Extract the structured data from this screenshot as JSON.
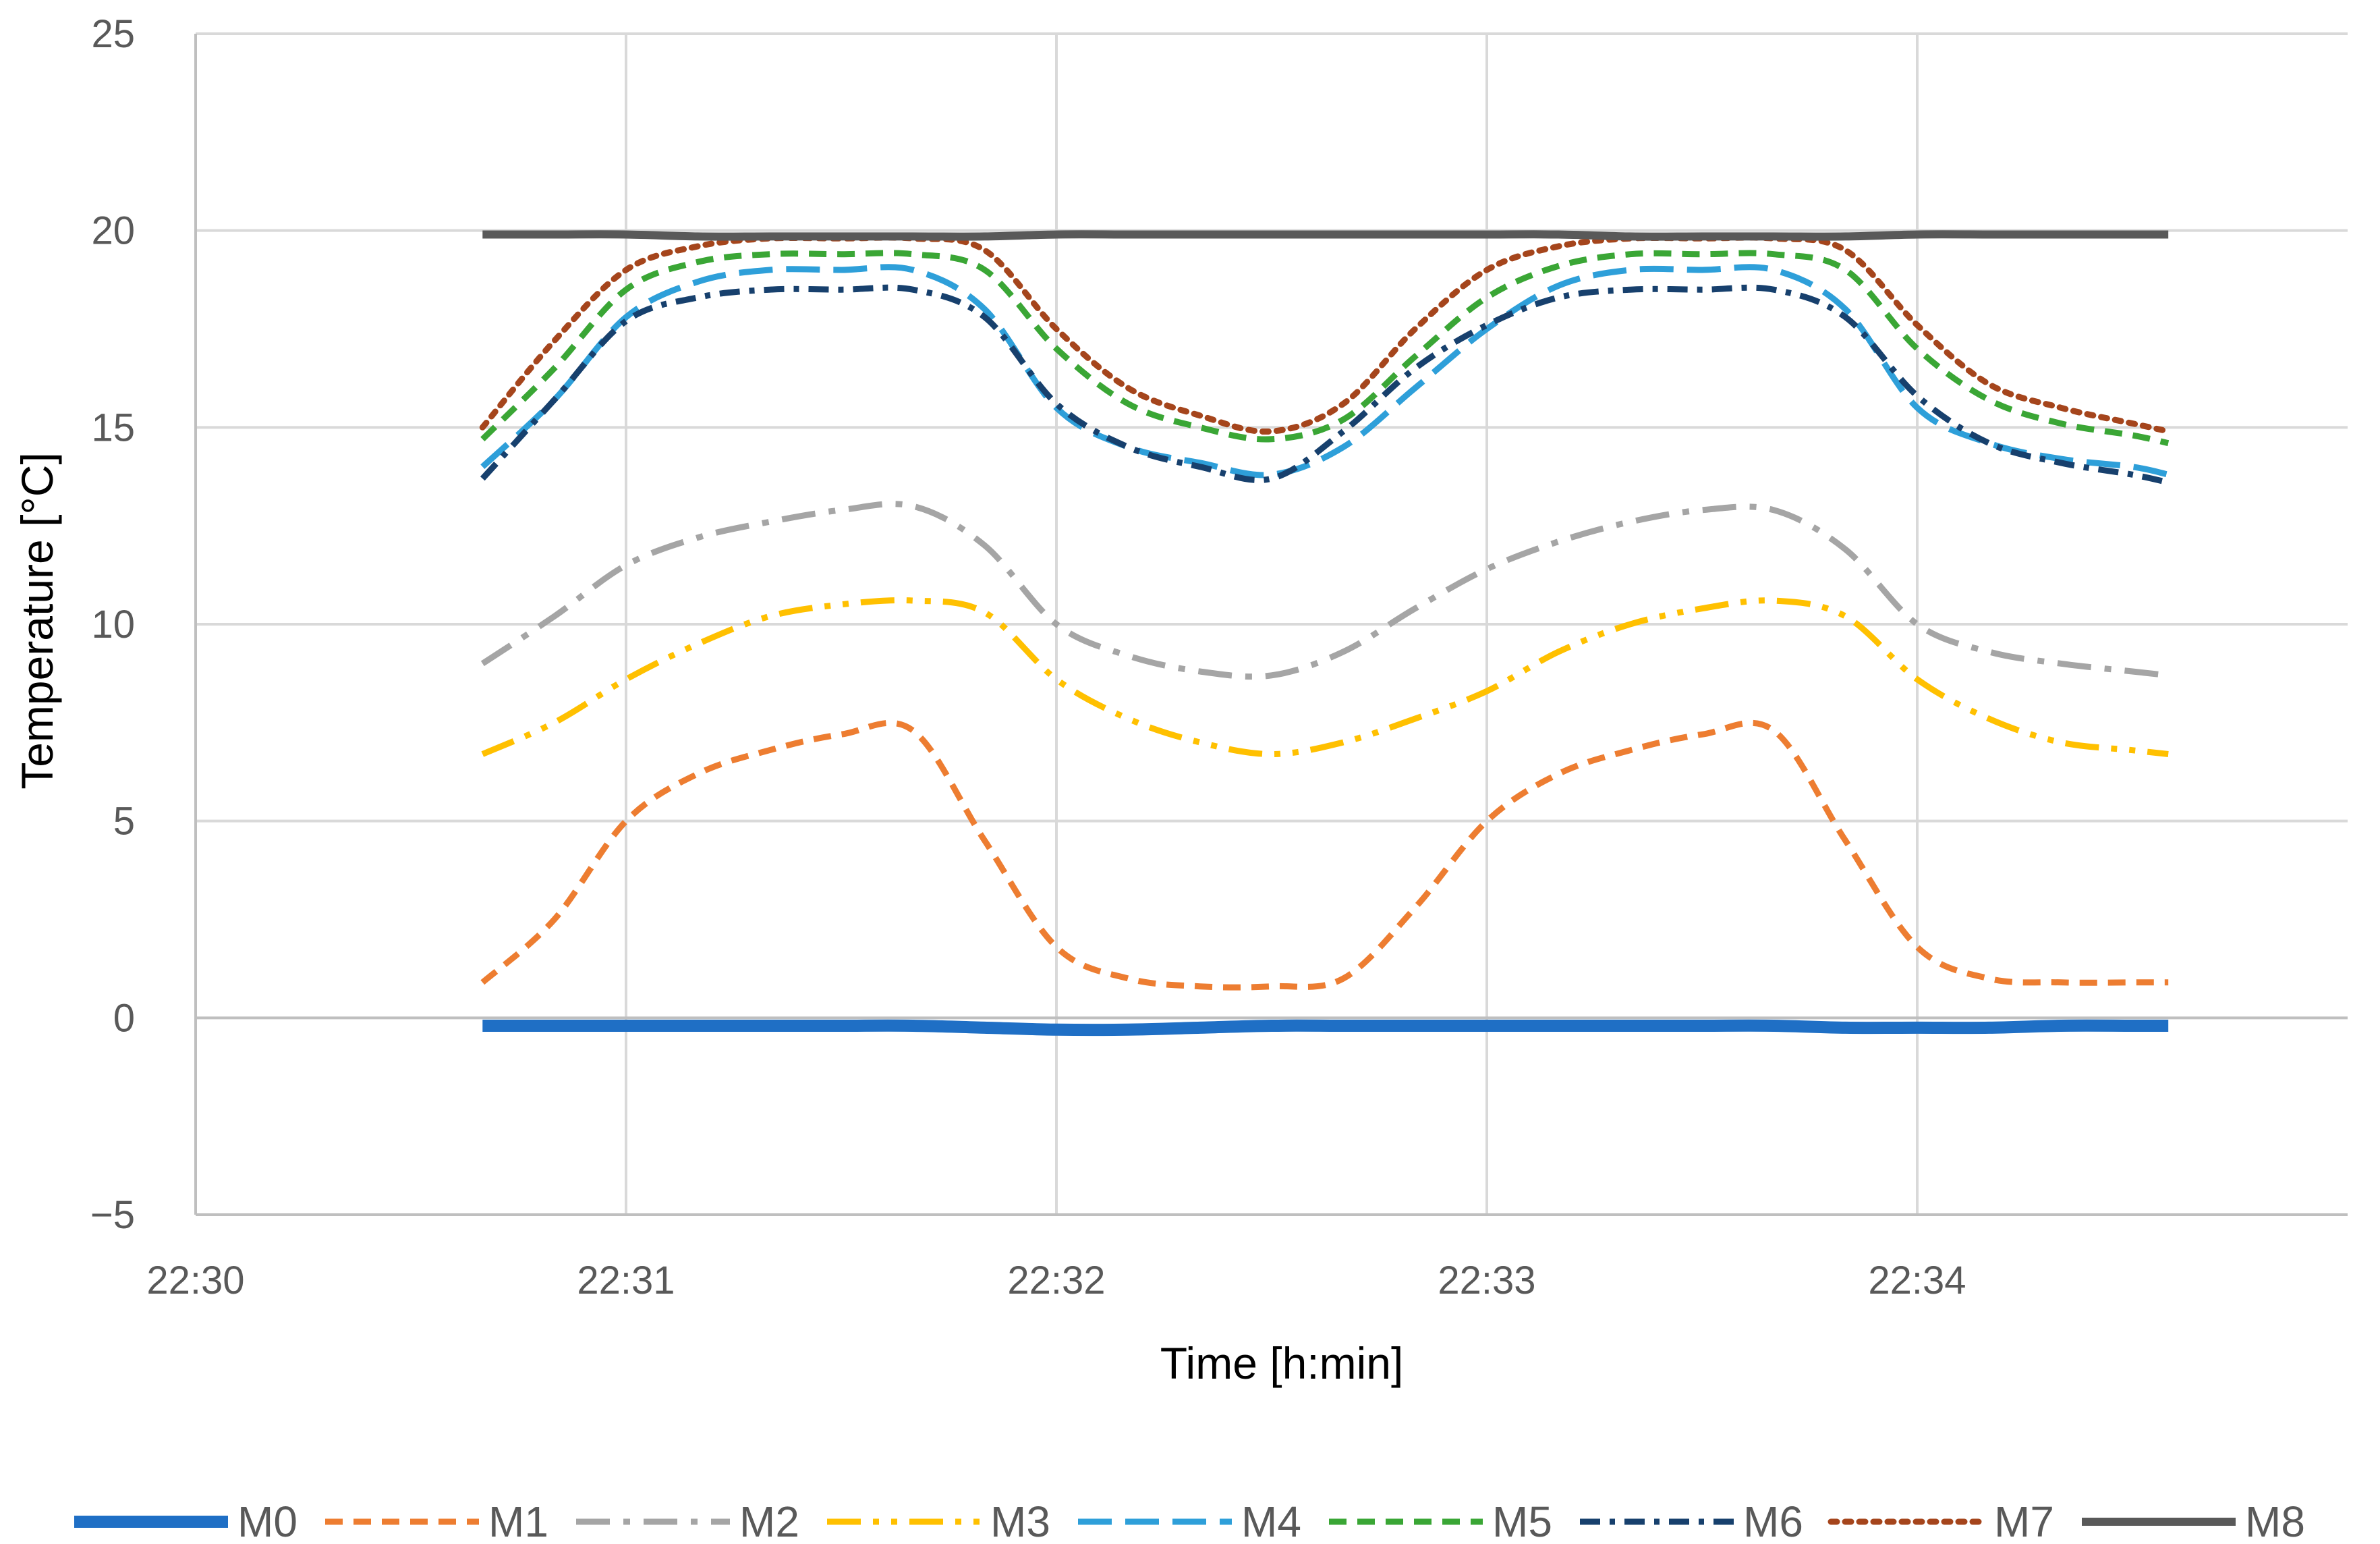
{
  "chart_data": {
    "type": "line",
    "xlabel": "Time [h:min]",
    "ylabel": "Temperature [°C]",
    "xlim": [
      "22:30",
      "22:35"
    ],
    "ylim": [
      -5,
      25
    ],
    "x_ticks": [
      "22:30",
      "22:31",
      "22:32",
      "22:33",
      "22:34"
    ],
    "y_ticks": [
      "−5",
      "0",
      "5",
      "10",
      "15",
      "20",
      "25"
    ],
    "grid": true,
    "legend_position": "bottom",
    "x": [
      "22:30:40",
      "22:30:50",
      "22:31:00",
      "22:31:10",
      "22:31:20",
      "22:31:30",
      "22:31:40",
      "22:31:50",
      "22:32:00",
      "22:32:10",
      "22:32:20",
      "22:32:30",
      "22:32:40",
      "22:32:50",
      "22:33:00",
      "22:33:10",
      "22:33:20",
      "22:33:30",
      "22:33:40",
      "22:33:50",
      "22:34:00",
      "22:34:10",
      "22:34:20",
      "22:34:30",
      "22:34:35"
    ],
    "series": [
      {
        "name": "M0",
        "color": "#1f6fc5",
        "dash": "solid",
        "width": 18,
        "values": [
          -0.2,
          -0.2,
          -0.2,
          -0.2,
          -0.2,
          -0.2,
          -0.2,
          -0.25,
          -0.3,
          -0.3,
          -0.25,
          -0.2,
          -0.2,
          -0.2,
          -0.2,
          -0.2,
          -0.2,
          -0.2,
          -0.2,
          -0.25,
          -0.25,
          -0.25,
          -0.2,
          -0.2,
          -0.2
        ]
      },
      {
        "name": "M1",
        "color": "#ed7d31",
        "dash": "dash",
        "width": 9,
        "values": [
          0.9,
          2.5,
          5.0,
          6.2,
          6.8,
          7.2,
          7.3,
          4.5,
          1.8,
          1.0,
          0.8,
          0.8,
          1.0,
          2.8,
          5.0,
          6.2,
          6.8,
          7.2,
          7.3,
          4.5,
          1.8,
          1.0,
          0.9,
          0.9,
          0.9
        ]
      },
      {
        "name": "M2",
        "color": "#a5a5a5",
        "dash": "longdashdot",
        "width": 9,
        "values": [
          9.0,
          10.2,
          11.5,
          12.2,
          12.6,
          12.9,
          13.0,
          12.0,
          10.0,
          9.2,
          8.8,
          8.7,
          9.3,
          10.4,
          11.4,
          12.1,
          12.6,
          12.9,
          12.9,
          11.9,
          10.0,
          9.3,
          9.0,
          8.8,
          8.7
        ]
      },
      {
        "name": "M3",
        "color": "#ffc000",
        "dash": "longdashdotdot",
        "width": 9,
        "values": [
          6.7,
          7.5,
          8.6,
          9.5,
          10.2,
          10.5,
          10.6,
          10.3,
          8.6,
          7.6,
          7.0,
          6.7,
          7.0,
          7.6,
          8.3,
          9.3,
          10.0,
          10.4,
          10.6,
          10.2,
          8.6,
          7.6,
          7.0,
          6.8,
          6.7
        ]
      },
      {
        "name": "M4",
        "color": "#2e9fd9",
        "dash": "longdash",
        "width": 9,
        "values": [
          14.0,
          15.7,
          17.8,
          18.7,
          19.0,
          19.0,
          19.0,
          18.0,
          15.5,
          14.5,
          14.1,
          13.8,
          14.5,
          16.0,
          17.5,
          18.6,
          19.0,
          19.0,
          19.0,
          18.0,
          15.5,
          14.6,
          14.2,
          14.0,
          13.8
        ]
      },
      {
        "name": "M5",
        "color": "#3aa635",
        "dash": "dash",
        "width": 9,
        "values": [
          14.7,
          16.5,
          18.5,
          19.2,
          19.4,
          19.4,
          19.4,
          19.0,
          17.0,
          15.6,
          15.0,
          14.7,
          15.2,
          16.8,
          18.3,
          19.1,
          19.4,
          19.4,
          19.4,
          19.0,
          17.0,
          15.7,
          15.1,
          14.8,
          14.6
        ]
      },
      {
        "name": "M6",
        "color": "#17406d",
        "dash": "dashdot",
        "width": 9,
        "values": [
          13.7,
          15.7,
          17.7,
          18.3,
          18.5,
          18.5,
          18.5,
          17.8,
          15.6,
          14.5,
          14.0,
          13.7,
          14.9,
          16.5,
          17.6,
          18.3,
          18.5,
          18.5,
          18.5,
          17.8,
          15.8,
          14.6,
          14.1,
          13.8,
          13.6
        ]
      },
      {
        "name": "M7",
        "color": "#a5451c",
        "dash": "dot",
        "width": 9,
        "values": [
          15.0,
          17.2,
          19.0,
          19.6,
          19.8,
          19.8,
          19.8,
          19.5,
          17.5,
          16.0,
          15.3,
          14.9,
          15.6,
          17.5,
          19.0,
          19.6,
          19.8,
          19.8,
          19.8,
          19.5,
          17.6,
          16.1,
          15.5,
          15.1,
          14.9
        ]
      },
      {
        "name": "M8",
        "color": "#595959",
        "dash": "solid",
        "width": 12,
        "values": [
          19.9,
          19.9,
          19.9,
          19.85,
          19.85,
          19.85,
          19.85,
          19.85,
          19.9,
          19.9,
          19.9,
          19.9,
          19.9,
          19.9,
          19.9,
          19.9,
          19.85,
          19.85,
          19.85,
          19.85,
          19.9,
          19.9,
          19.9,
          19.9,
          19.9
        ]
      }
    ]
  }
}
